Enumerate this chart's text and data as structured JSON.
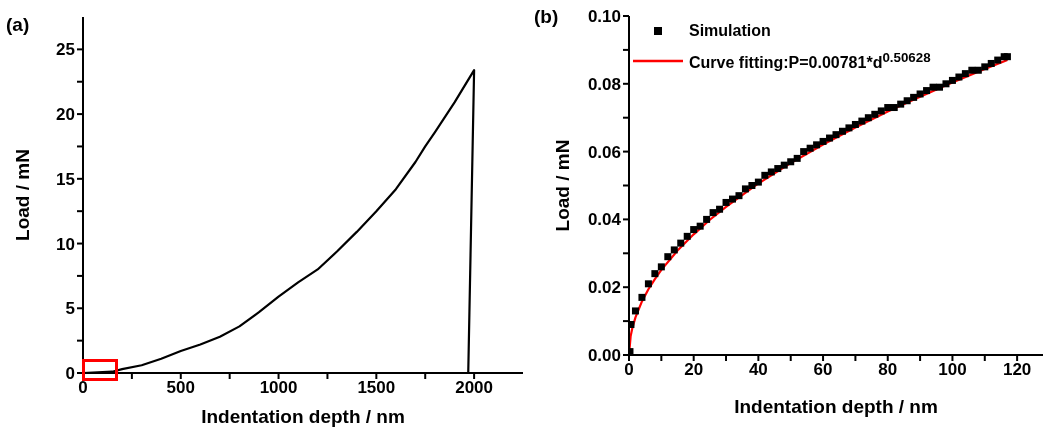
{
  "chart_data": [
    {
      "type": "line",
      "title": "(a)",
      "xlabel": "Indentation depth / nm",
      "ylabel": "Load / mN",
      "series": [
        {
          "color": "#000000",
          "x": [
            0,
            150,
            200,
            300,
            400,
            500,
            600,
            700,
            800,
            900,
            1000,
            1100,
            1200,
            1300,
            1400,
            1500,
            1600,
            1700,
            1750,
            1800,
            1900,
            2000,
            1970
          ],
          "values": [
            0,
            0.1,
            0.3,
            0.6,
            1.1,
            1.7,
            2.2,
            2.8,
            3.6,
            4.7,
            5.9,
            7.0,
            8.0,
            9.4,
            10.9,
            12.5,
            14.2,
            16.3,
            17.5,
            18.6,
            20.9,
            23.4,
            0
          ]
        }
      ],
      "xlim": [
        0,
        2250
      ],
      "ylim": [
        0,
        27.5
      ],
      "xticks": [
        0,
        {
          "value": 250,
          "label": null
        },
        500,
        {
          "value": 750,
          "label": null
        },
        1000,
        {
          "value": 1250,
          "label": null
        },
        1500,
        {
          "value": 1750,
          "label": null
        },
        2000
      ],
      "yticks": [
        0,
        {
          "value": 2.5,
          "label": null
        },
        5,
        {
          "value": 7.5,
          "label": null
        },
        10,
        {
          "value": 12.5,
          "label": null
        },
        15,
        {
          "value": 17.5,
          "label": null
        },
        20,
        {
          "value": 22.5,
          "label": null
        },
        25
      ],
      "grid": false,
      "legend": false
    },
    {
      "type": "scatter",
      "title": "(b)",
      "xlabel": "Indentation depth / nm",
      "ylabel": "Load / mN",
      "series": [
        {
          "name": "Simulation",
          "marker": "square",
          "color": "#000000",
          "x": [
            0.3,
            0.6,
            2,
            4,
            6,
            8,
            10,
            12,
            14,
            16,
            18,
            20,
            22,
            24,
            26,
            28,
            30,
            32,
            34,
            36,
            38,
            40,
            42,
            44,
            46,
            48,
            50,
            52,
            54,
            56,
            58,
            60,
            62,
            64,
            66,
            68,
            70,
            72,
            74,
            76,
            78,
            80,
            82,
            84,
            86,
            88,
            90,
            92,
            94,
            96,
            98,
            100,
            102,
            104,
            106,
            108,
            110,
            112,
            114,
            116,
            117
          ],
          "values": [
            0.001,
            0.009,
            0.013,
            0.017,
            0.021,
            0.024,
            0.026,
            0.029,
            0.031,
            0.033,
            0.035,
            0.037,
            0.038,
            0.04,
            0.042,
            0.043,
            0.045,
            0.046,
            0.047,
            0.049,
            0.05,
            0.051,
            0.053,
            0.054,
            0.055,
            0.056,
            0.057,
            0.058,
            0.06,
            0.061,
            0.062,
            0.063,
            0.064,
            0.065,
            0.066,
            0.067,
            0.068,
            0.069,
            0.07,
            0.071,
            0.072,
            0.073,
            0.073,
            0.074,
            0.075,
            0.076,
            0.077,
            0.078,
            0.079,
            0.079,
            0.08,
            0.081,
            0.082,
            0.083,
            0.084,
            0.084,
            0.085,
            0.086,
            0.087,
            0.088,
            0.088
          ]
        },
        {
          "name": "Curve fitting:P=0.00781*d$^{0.50628}$",
          "type": "line",
          "marker": "none",
          "color": "#ff0000",
          "x": [
            0,
            0.5,
            1,
            2,
            4,
            6,
            8,
            10,
            15,
            20,
            25,
            30,
            40,
            50,
            60,
            70,
            80,
            90,
            100,
            110,
            117
          ],
          "values": [
            0,
            0.0055,
            0.0078,
            0.0111,
            0.0158,
            0.0194,
            0.0224,
            0.0251,
            0.0308,
            0.0356,
            0.0399,
            0.0437,
            0.0506,
            0.0566,
            0.0621,
            0.0671,
            0.0718,
            0.0762,
            0.0804,
            0.0844,
            0.087
          ]
        }
      ],
      "xlim": [
        0,
        128
      ],
      "ylim": [
        0,
        0.1
      ],
      "xticks": [
        0,
        {
          "value": 10,
          "label": null
        },
        20,
        {
          "value": 30,
          "label": null
        },
        40,
        {
          "value": 50,
          "label": null
        },
        60,
        {
          "value": 70,
          "label": null
        },
        80,
        {
          "value": 90,
          "label": null
        },
        100,
        {
          "value": 110,
          "label": null
        },
        120
      ],
      "yticks": [
        {
          "value": 0,
          "label": "0.00"
        },
        {
          "value": 0.01,
          "label": null
        },
        {
          "value": 0.02,
          "label": "0.02"
        },
        {
          "value": 0.03,
          "label": null
        },
        {
          "value": 0.04,
          "label": "0.04"
        },
        {
          "value": 0.05,
          "label": null
        },
        {
          "value": 0.06,
          "label": "0.06"
        },
        {
          "value": 0.07,
          "label": null
        },
        {
          "value": 0.08,
          "label": "0.08"
        },
        {
          "value": 0.09,
          "label": null
        },
        {
          "value": 0.1,
          "label": "0.10"
        }
      ],
      "grid": false,
      "legend": "top left"
    }
  ]
}
